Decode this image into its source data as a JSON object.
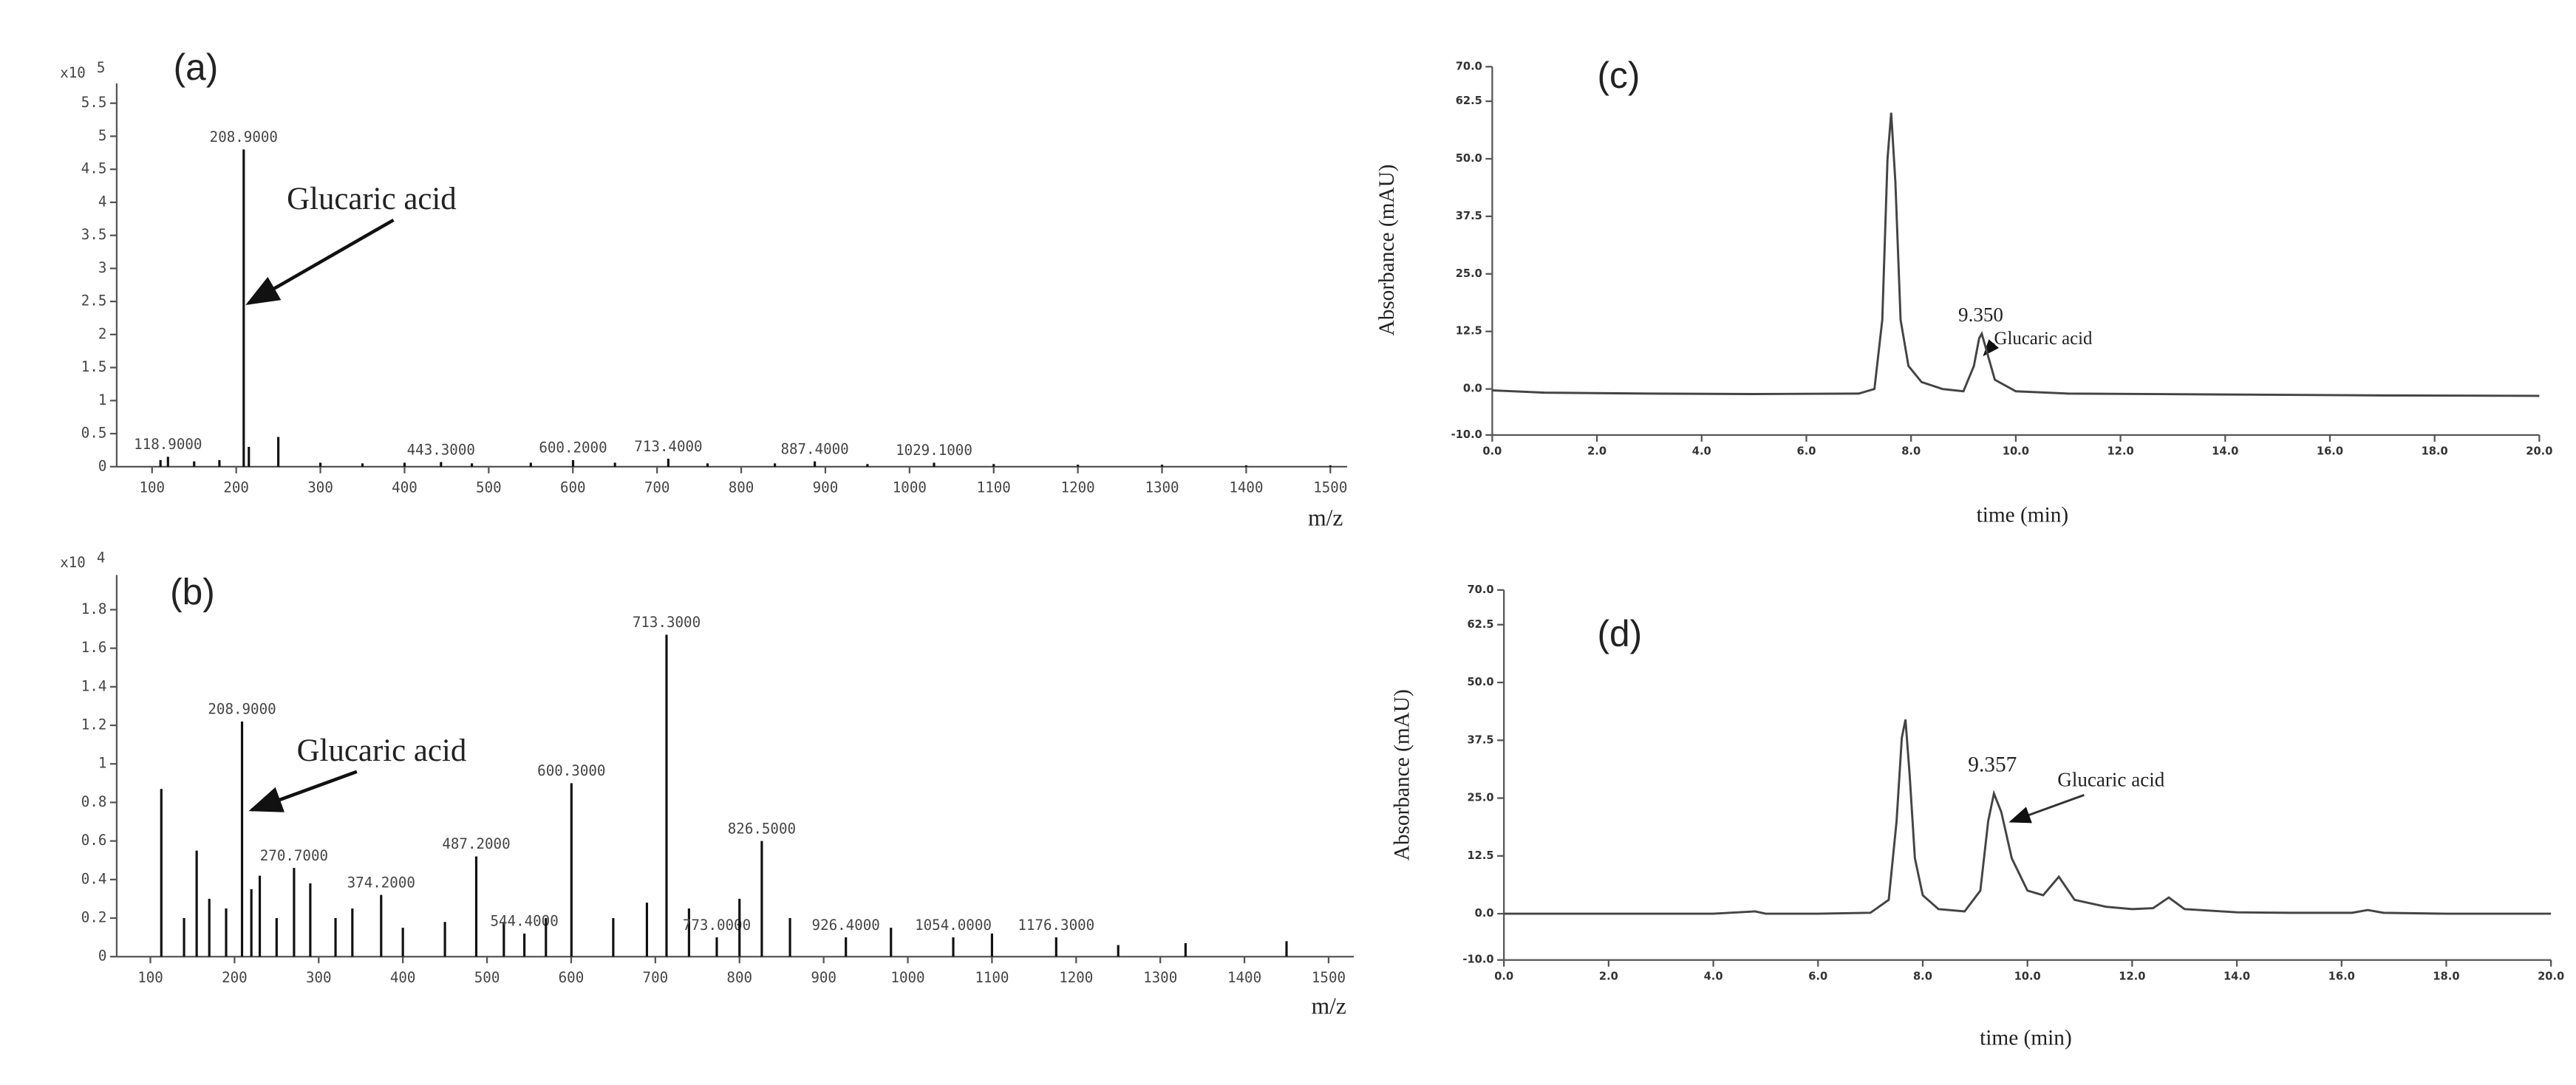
{
  "chart_data": [
    {
      "type": "bar",
      "panel_label": "(a)",
      "xlabel": "m/z",
      "y_scale_label": "x10",
      "y_scale_exponent": "5",
      "annotation": "Glucaric acid",
      "color": "#111111",
      "xlim": [
        58,
        1520
      ],
      "ylim": [
        0,
        5.8
      ],
      "xticks": [
        100,
        200,
        300,
        400,
        500,
        600,
        700,
        800,
        900,
        1000,
        1100,
        1200,
        1300,
        1400,
        1500
      ],
      "yticks": [
        0,
        0.5,
        1,
        1.5,
        2,
        2.5,
        3,
        3.5,
        4,
        4.5,
        5,
        5.5
      ],
      "x": [
        110,
        118.9,
        150,
        180,
        208.9,
        215,
        250,
        300,
        350,
        400,
        443.3,
        480,
        550,
        600.2,
        650,
        713.4,
        760,
        840,
        887.4,
        950,
        1029.1,
        1100,
        1200,
        1300,
        1400,
        1500
      ],
      "values": [
        0.1,
        0.15,
        0.08,
        0.1,
        4.8,
        0.3,
        0.45,
        0.06,
        0.05,
        0.06,
        0.07,
        0.05,
        0.06,
        0.1,
        0.06,
        0.12,
        0.05,
        0.05,
        0.08,
        0.04,
        0.06,
        0.04,
        0.03,
        0.03,
        0.02,
        0.02
      ],
      "x_labels": [
        null,
        "118.9000",
        null,
        null,
        "208.9000",
        null,
        null,
        null,
        null,
        null,
        "443.3000",
        null,
        null,
        "600.2000",
        null,
        "713.4000",
        null,
        null,
        "887.4000",
        null,
        "1029.1000",
        null,
        null,
        null,
        null,
        null
      ]
    },
    {
      "type": "bar",
      "panel_label": "(b)",
      "xlabel": "m/z",
      "y_scale_label": "x10",
      "y_scale_exponent": "4",
      "annotation": "Glucaric acid",
      "color": "#111111",
      "xlim": [
        60,
        1530
      ],
      "ylim": [
        0,
        1.98
      ],
      "xticks": [
        100,
        200,
        300,
        400,
        500,
        600,
        700,
        800,
        900,
        1000,
        1100,
        1200,
        1300,
        1400,
        1500
      ],
      "yticks": [
        0,
        0.2,
        0.4,
        0.6,
        0.8,
        1,
        1.2,
        1.4,
        1.6,
        1.8
      ],
      "x": [
        113,
        140,
        155,
        170,
        190,
        208.9,
        220,
        230,
        250,
        270.7,
        290,
        320,
        340,
        374.2,
        400,
        450,
        487.2,
        520,
        544.4,
        570,
        600.3,
        650,
        690,
        713.3,
        740,
        773.0,
        800,
        826.5,
        860,
        926.4,
        980,
        1054.0,
        1100,
        1176.3,
        1250,
        1330,
        1450
      ],
      "values": [
        0.87,
        0.2,
        0.55,
        0.3,
        0.25,
        1.22,
        0.35,
        0.42,
        0.2,
        0.46,
        0.38,
        0.2,
        0.25,
        0.32,
        0.15,
        0.18,
        0.52,
        0.18,
        0.12,
        0.2,
        0.9,
        0.2,
        0.28,
        1.67,
        0.25,
        0.1,
        0.3,
        0.6,
        0.2,
        0.1,
        0.15,
        0.1,
        0.12,
        0.1,
        0.06,
        0.07,
        0.08
      ],
      "x_labels": [
        null,
        null,
        null,
        null,
        null,
        "208.9000",
        null,
        null,
        null,
        "270.7000",
        null,
        null,
        null,
        "374.2000",
        null,
        null,
        "487.2000",
        null,
        "544.4000",
        null,
        "600.3000",
        null,
        null,
        "713.3000",
        null,
        "773.0000",
        null,
        "826.5000",
        null,
        "926.4000",
        null,
        "1054.0000",
        null,
        "1176.3000",
        null,
        null,
        null
      ]
    },
    {
      "type": "line",
      "panel_label": "(c)",
      "xlabel": "time (min)",
      "ylabel": "Absorbance (mAU)",
      "annotations": [
        "9.350",
        "Glucaric acid"
      ],
      "color": "#444444",
      "xlim": [
        0,
        20
      ],
      "ylim": [
        -10,
        70
      ],
      "xticks": [
        {
          "value": 0,
          "label": "0.0"
        },
        {
          "value": 2,
          "label": "2.0"
        },
        {
          "value": 4,
          "label": "4.0"
        },
        {
          "value": 6,
          "label": "6.0"
        },
        {
          "value": 8,
          "label": "8.0"
        },
        {
          "value": 10,
          "label": "10.0"
        },
        {
          "value": 12,
          "label": "12.0"
        },
        {
          "value": 14,
          "label": "14.0"
        },
        {
          "value": 16,
          "label": "16.0"
        },
        {
          "value": 18,
          "label": "18.0"
        },
        {
          "value": 20,
          "label": "20.0"
        }
      ],
      "yticks": [
        {
          "value": -10,
          "label": "-10.0"
        },
        {
          "value": 0,
          "label": "0.0"
        },
        12.5,
        {
          "value": 25,
          "label": "25.0"
        },
        37.5,
        {
          "value": 50,
          "label": "50.0"
        },
        62.5,
        {
          "value": 70,
          "label": "70.0"
        }
      ],
      "x": [
        0,
        1,
        3,
        5,
        7,
        7.3,
        7.45,
        7.55,
        7.62,
        7.7,
        7.8,
        7.95,
        8.2,
        8.6,
        9.0,
        9.2,
        9.3,
        9.35,
        9.45,
        9.6,
        10,
        11,
        14,
        17,
        20
      ],
      "values": [
        -0.3,
        -0.8,
        -1,
        -1.1,
        -1,
        0,
        15,
        50,
        60,
        45,
        15,
        5,
        1.5,
        0,
        -0.5,
        5,
        11,
        12,
        8,
        2,
        -0.5,
        -1,
        -1.2,
        -1.4,
        -1.5
      ]
    },
    {
      "type": "line",
      "panel_label": "(d)",
      "xlabel": "time (min)",
      "ylabel": "Absorbance (mAU)",
      "annotations": [
        "9.357",
        "Glucaric acid"
      ],
      "color": "#444444",
      "xlim": [
        0,
        20
      ],
      "ylim": [
        -10,
        70
      ],
      "xticks": [
        {
          "value": 0,
          "label": "0.0"
        },
        {
          "value": 2,
          "label": "2.0"
        },
        {
          "value": 4,
          "label": "4.0"
        },
        {
          "value": 6,
          "label": "6.0"
        },
        {
          "value": 8,
          "label": "8.0"
        },
        {
          "value": 10,
          "label": "10.0"
        },
        {
          "value": 12,
          "label": "12.0"
        },
        {
          "value": 14,
          "label": "14.0"
        },
        {
          "value": 16,
          "label": "16.0"
        },
        {
          "value": 18,
          "label": "18.0"
        },
        {
          "value": 20,
          "label": "20.0"
        }
      ],
      "yticks": [
        {
          "value": -10,
          "label": "-10.0"
        },
        {
          "value": 0,
          "label": "0.0"
        },
        12.5,
        {
          "value": 25,
          "label": "25.0"
        },
        37.5,
        {
          "value": 50,
          "label": "50.0"
        },
        62.5,
        {
          "value": 70,
          "label": "70.0"
        }
      ],
      "x": [
        0,
        2,
        4,
        4.8,
        5,
        6,
        7,
        7.35,
        7.5,
        7.6,
        7.67,
        7.75,
        7.85,
        8.0,
        8.3,
        8.8,
        9.1,
        9.25,
        9.36,
        9.5,
        9.7,
        10.0,
        10.3,
        10.6,
        10.9,
        11.5,
        12.0,
        12.4,
        12.7,
        13.0,
        14,
        15,
        16.2,
        16.5,
        16.8,
        18,
        20
      ],
      "values": [
        0,
        0,
        0,
        0.5,
        0,
        0,
        0.2,
        3,
        20,
        38,
        42,
        30,
        12,
        4,
        1,
        0.5,
        5,
        20,
        26,
        22,
        12,
        5,
        4,
        8,
        3,
        1.5,
        1,
        1.2,
        3.5,
        1,
        0.3,
        0.2,
        0.2,
        0.8,
        0.2,
        0,
        0
      ]
    }
  ]
}
